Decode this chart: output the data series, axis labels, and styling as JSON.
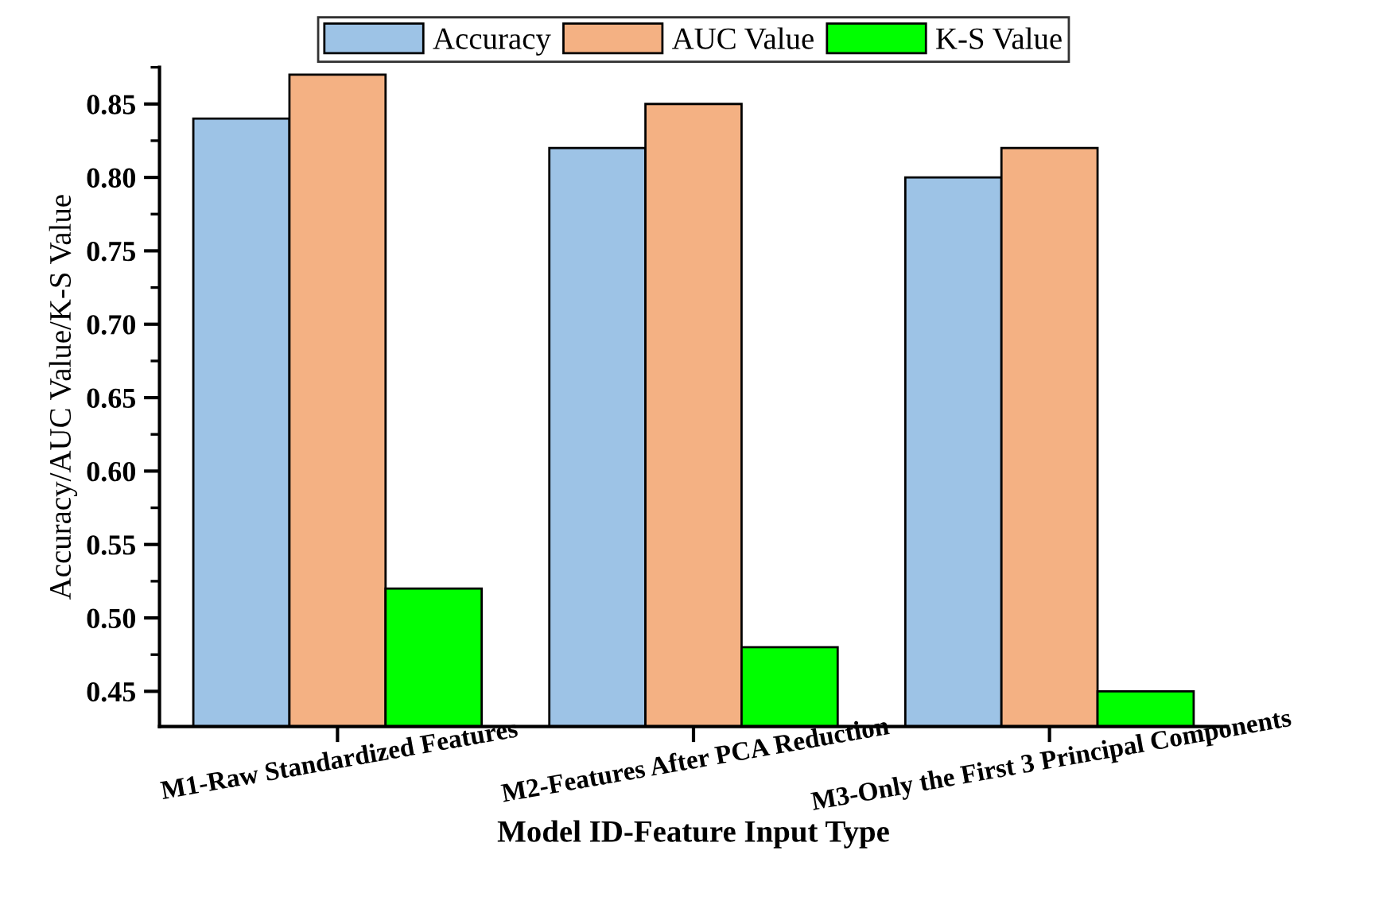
{
  "chart_data": {
    "type": "bar",
    "xlabel": "Model ID-Feature Input Type",
    "ylabel": "Accuracy/AUC Value/K-S Value",
    "categories": [
      "M1-Raw Standardized Features",
      "M2-Features After PCA Reduction",
      "M3-Only the First 3 Principal Components"
    ],
    "series": [
      {
        "name": "Accuracy",
        "color": "#9dc3e6",
        "values": [
          0.84,
          0.82,
          0.8
        ]
      },
      {
        "name": "AUC Value",
        "color": "#f4b183",
        "values": [
          0.87,
          0.85,
          0.82
        ]
      },
      {
        "name": "K-S Value",
        "color": "#00ff00",
        "values": [
          0.52,
          0.48,
          0.45
        ]
      }
    ],
    "ylim": [
      0.426,
      0.875
    ],
    "yticks": [
      0.45,
      {
        "value": 0.5,
        "label": "0.50"
      },
      0.55,
      {
        "value": 0.6,
        "label": "0.60"
      },
      0.65,
      {
        "value": 0.7,
        "label": "0.70"
      },
      0.75,
      {
        "value": 0.8,
        "label": "0.80"
      },
      0.85
    ],
    "grid": false,
    "legend": "top"
  }
}
